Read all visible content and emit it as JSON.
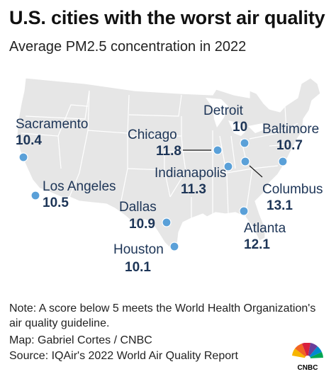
{
  "title": "U.S. cities with the worst air quality",
  "subtitle": "Average PM2.5 concentration in 2022",
  "cities": [
    {
      "name": "Sacramento",
      "value": "10.4"
    },
    {
      "name": "Los Angeles",
      "value": "10.5"
    },
    {
      "name": "Chicago",
      "value": "11.8"
    },
    {
      "name": "Detroit",
      "value": "10"
    },
    {
      "name": "Baltimore",
      "value": "10.7"
    },
    {
      "name": "Indianapolis",
      "value": "11.3"
    },
    {
      "name": "Columbus",
      "value": "13.1"
    },
    {
      "name": "Dallas",
      "value": "10.9"
    },
    {
      "name": "Atlanta",
      "value": "12.1"
    },
    {
      "name": "Houston",
      "value": "10.1"
    }
  ],
  "note": "Note: A score below 5 meets the World Health Organization's air quality guideline.",
  "map_credit": "Map: Gabriel Cortes / CNBC",
  "source": "Source: IQAir's 2022 World Air Quality Report",
  "logo_text": "CNBC",
  "colors": {
    "dot": "#5aa0d8",
    "label": "#1d3557",
    "land": "#e6e6e6",
    "border": "#ffffff"
  }
}
